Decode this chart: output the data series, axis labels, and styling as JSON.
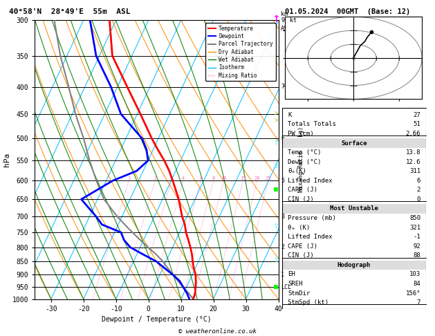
{
  "title_left": "40°58'N  28°49'E  55m  ASL",
  "title_right": "01.05.2024  00GMT  (Base: 12)",
  "xlabel": "Dewpoint / Temperature (°C)",
  "ylabel_left": "hPa",
  "temp_data": {
    "pressure": [
      1000,
      975,
      950,
      925,
      900,
      875,
      850,
      825,
      800,
      775,
      750,
      725,
      700,
      650,
      600,
      575,
      550,
      525,
      500,
      450,
      400,
      350,
      300
    ],
    "temp": [
      13.8,
      13.5,
      12.8,
      12.0,
      11.0,
      9.5,
      8.2,
      7.0,
      5.5,
      3.8,
      2.0,
      0.5,
      -1.5,
      -5.0,
      -9.5,
      -12.0,
      -15.0,
      -18.5,
      -22.0,
      -29.0,
      -37.0,
      -46.0,
      -52.0
    ]
  },
  "dewp_data": {
    "pressure": [
      1000,
      975,
      950,
      925,
      900,
      875,
      850,
      825,
      800,
      775,
      750,
      725,
      700,
      650,
      600,
      575,
      550,
      525,
      500,
      450,
      400,
      350,
      300
    ],
    "dewp": [
      12.6,
      11.0,
      9.0,
      7.0,
      4.0,
      0.5,
      -3.0,
      -8.0,
      -13.0,
      -16.0,
      -18.0,
      -25.0,
      -28.0,
      -35.0,
      -28.0,
      -22.0,
      -20.0,
      -22.0,
      -25.0,
      -35.0,
      -42.0,
      -51.0,
      -58.0
    ]
  },
  "parcel_data": {
    "pressure": [
      1000,
      975,
      950,
      925,
      900,
      875,
      850,
      825,
      800,
      775,
      750,
      725,
      700,
      650,
      600,
      550,
      500,
      450,
      400,
      350,
      300
    ],
    "temp": [
      13.8,
      11.5,
      9.0,
      6.5,
      4.0,
      1.5,
      -1.0,
      -4.0,
      -7.5,
      -11.0,
      -14.5,
      -18.0,
      -21.5,
      -28.0,
      -33.0,
      -38.0,
      -43.0,
      -49.0,
      -55.0,
      -62.0,
      -69.0
    ]
  },
  "mixing_ratios": [
    1,
    2,
    3,
    4,
    6,
    8,
    10,
    15,
    20,
    25
  ],
  "info_lines": [
    [
      "K",
      "27",
      false
    ],
    [
      "Totals Totals",
      "51",
      false
    ],
    [
      "PW (cm)",
      "2.66",
      false
    ],
    [
      "Surface",
      "",
      true
    ],
    [
      "Temp (°C)",
      "13.8",
      false
    ],
    [
      "Dewp (°C)",
      "12.6",
      false
    ],
    [
      "θₑ(K)",
      "311",
      false
    ],
    [
      "Lifted Index",
      "6",
      false
    ],
    [
      "CAPE (J)",
      "2",
      false
    ],
    [
      "CIN (J)",
      "0",
      false
    ],
    [
      "Most Unstable",
      "",
      true
    ],
    [
      "Pressure (mb)",
      "850",
      false
    ],
    [
      "θₑ (K)",
      "321",
      false
    ],
    [
      "Lifted Index",
      "-1",
      false
    ],
    [
      "CAPE (J)",
      "92",
      false
    ],
    [
      "CIN (J)",
      "88",
      false
    ],
    [
      "Hodograph",
      "",
      true
    ],
    [
      "EH",
      "103",
      false
    ],
    [
      "SREH",
      "84",
      false
    ],
    [
      "StmDir",
      "156°",
      false
    ],
    [
      "StmSpd (kt)",
      "7",
      false
    ]
  ],
  "colors": {
    "temp": "#ff0000",
    "dewp": "#0000ff",
    "parcel": "#808080",
    "dry_adiabat": "#ff8c00",
    "wet_adiabat": "#008000",
    "isotherm": "#00bfff",
    "mixing_ratio": "#ff69b4",
    "background": "#ffffff"
  },
  "copyright": "© weatheronline.co.uk",
  "legend_entries": [
    "Temperature",
    "Dewpoint",
    "Parcel Trajectory",
    "Dry Adiabat",
    "Wet Adiabat",
    "Isotherm",
    "Mixing Ratio"
  ]
}
